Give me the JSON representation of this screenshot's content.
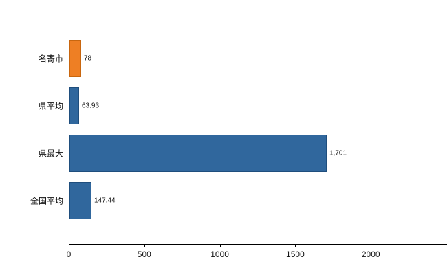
{
  "chart_data": {
    "type": "bar",
    "orientation": "horizontal",
    "title": "",
    "categories": [
      "名寄市",
      "県平均",
      "県最大",
      "全国平均"
    ],
    "values": [
      78,
      63.93,
      1701,
      147.44
    ],
    "value_labels": [
      "78",
      "63.93",
      "1,701",
      "147.44"
    ],
    "bar_colors": [
      "#ee7f24",
      "#30679d",
      "#30679d",
      "#30679d"
    ],
    "bar_border_colors": [
      "#c8660f",
      "#1f4e7d",
      "#1f4e7d",
      "#1f4e7d"
    ],
    "x_ticks": [
      0,
      500,
      1000,
      1500,
      2000
    ],
    "x_tick_labels": [
      "0",
      "500",
      "1000",
      "1500",
      "2000"
    ],
    "xlim": [
      0,
      2550
    ],
    "xlabel": "",
    "ylabel": "",
    "grid": false,
    "legend_position": "none"
  },
  "colors": {
    "axis": "#000000",
    "plot_border": "#8a8a8a",
    "text": "#111111",
    "background": "#ffffff",
    "accent_orange": "#ee7f24",
    "accent_blue": "#30679d"
  }
}
